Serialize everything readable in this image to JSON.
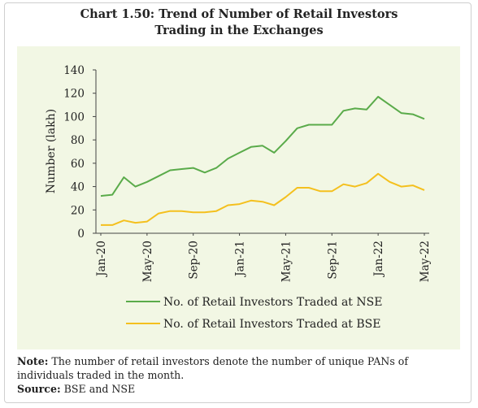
{
  "title_line1": "Chart 1.50: Trend of Number of Retail Investors",
  "title_line2": "Trading in the Exchanges",
  "note_label": "Note:",
  "note_text": " The number of retail investors denote the number of unique PANs of individuals traded in the month.",
  "source_label": "Source:",
  "source_text": " BSE and NSE",
  "chart_data": {
    "type": "line",
    "x": [
      "Jan-20",
      "Feb-20",
      "Mar-20",
      "Apr-20",
      "May-20",
      "Jun-20",
      "Jul-20",
      "Aug-20",
      "Sep-20",
      "Oct-20",
      "Nov-20",
      "Dec-20",
      "Jan-21",
      "Feb-21",
      "Mar-21",
      "Apr-21",
      "May-21",
      "Jun-21",
      "Jul-21",
      "Aug-21",
      "Sep-21",
      "Oct-21",
      "Nov-21",
      "Dec-21",
      "Jan-22",
      "Feb-22",
      "Mar-22",
      "Apr-22",
      "May-22"
    ],
    "tick_labels": [
      "Jan-20",
      "May-20",
      "Sep-20",
      "Jan-21",
      "May-21",
      "Sep-21",
      "Jan-22",
      "May-22"
    ],
    "ylabel": "Number (lakh)",
    "xlabel": "",
    "ylim": [
      0,
      140
    ],
    "yticks": [
      0,
      20,
      40,
      60,
      80,
      100,
      120,
      140
    ],
    "grid": false,
    "legend_position": "bottom",
    "series": [
      {
        "name": "No. of Retail Investors Traded at NSE",
        "color": "#5aab4a",
        "values": [
          32,
          33,
          48,
          40,
          44,
          49,
          54,
          55,
          56,
          52,
          56,
          64,
          69,
          74,
          75,
          69,
          79,
          90,
          93,
          93,
          93,
          105,
          107,
          106,
          117,
          110,
          103,
          102,
          98
        ]
      },
      {
        "name": "No. of Retail Investors Traded at BSE",
        "color": "#f4c01e",
        "values": [
          7,
          7,
          11,
          9,
          10,
          17,
          19,
          19,
          18,
          18,
          19,
          24,
          25,
          28,
          27,
          24,
          31,
          39,
          39,
          36,
          36,
          42,
          40,
          43,
          51,
          44,
          40,
          41,
          37
        ]
      }
    ]
  }
}
